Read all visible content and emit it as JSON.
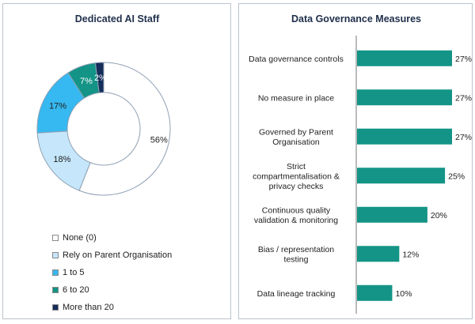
{
  "chart_data": [
    {
      "type": "pie",
      "title": "Dedicated AI Staff",
      "categories": [
        "None (0)",
        "Rely on Parent Organisation",
        "1 to 5",
        "6 to 20",
        "More than 20"
      ],
      "values": [
        56,
        18,
        17,
        7,
        2
      ],
      "labels": [
        "56%",
        "18%",
        "17%",
        "7%",
        "2%"
      ],
      "colors": [
        "#ffffff",
        "#c5e6fb",
        "#36b8f0",
        "#139486",
        "#142d5a"
      ],
      "legend": "bottom"
    },
    {
      "type": "bar",
      "orientation": "horizontal",
      "title": "Data Governance Measures",
      "categories": [
        [
          "Data governance controls"
        ],
        [
          "No measure in place"
        ],
        [
          "Governed by Parent",
          "Organisation"
        ],
        [
          "Strict",
          "compartmentalisation &",
          "privacy checks"
        ],
        [
          "Continuous quality",
          "validation & monitoring"
        ],
        [
          "Bias / representation",
          "testing"
        ],
        [
          "Data lineage tracking"
        ]
      ],
      "values": [
        27,
        27,
        27,
        25,
        20,
        12,
        10
      ],
      "labels": [
        "27%",
        "27%",
        "27%",
        "25%",
        "20%",
        "12%",
        "10%"
      ],
      "color": "#139486",
      "xlim": [
        0,
        27
      ]
    }
  ]
}
